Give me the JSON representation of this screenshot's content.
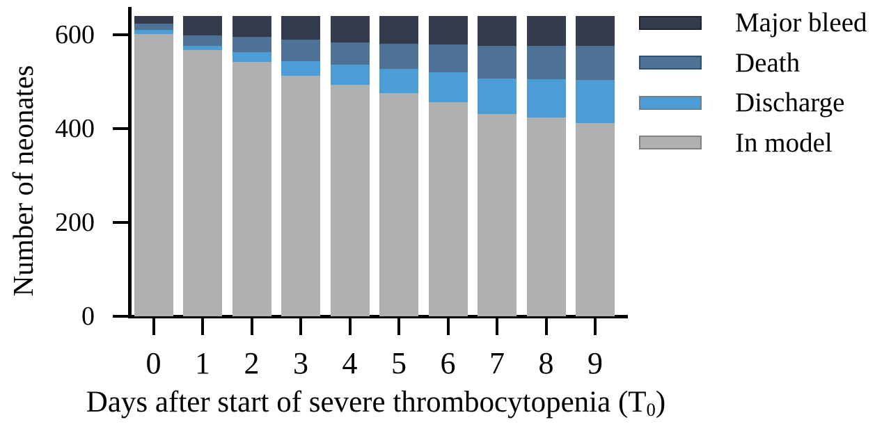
{
  "chart_data": {
    "type": "bar",
    "variant": "stacked",
    "title": "",
    "xlabel": {
      "prefix": "Days after start of severe thrombocytopenia (T",
      "subscript": "0",
      "suffix": ")"
    },
    "ylabel": "Number of neonates",
    "categories": [
      "0",
      "1",
      "2",
      "3",
      "4",
      "5",
      "6",
      "7",
      "8",
      "9"
    ],
    "yticks": [
      0,
      200,
      400,
      600
    ],
    "ylim": [
      0,
      640
    ],
    "grid": false,
    "legend_position": "top-right",
    "series": [
      {
        "name": "In model",
        "color": "#b1b0b0",
        "values": [
          602,
          567,
          542,
          513,
          494,
          476,
          456,
          431,
          423,
          412
        ]
      },
      {
        "name": "Discharge",
        "color": "#4c9cd5",
        "values": [
          9,
          10,
          21,
          31,
          42,
          51,
          64,
          76,
          82,
          92
        ]
      },
      {
        "name": "Death",
        "color": "#4e7295",
        "values": [
          12,
          22,
          33,
          45,
          48,
          54,
          59,
          70,
          72,
          73
        ]
      },
      {
        "name": "Major bleed",
        "color": "#343b4c",
        "values": [
          17,
          41,
          44,
          51,
          56,
          59,
          61,
          63,
          63,
          63
        ]
      }
    ],
    "legend": [
      {
        "label": "Major bleed",
        "color": "#343b4c",
        "border": "#20242f"
      },
      {
        "label": "Death",
        "color": "#4e7295",
        "border": "#32506e"
      },
      {
        "label": "Discharge",
        "color": "#4c9cd5",
        "border": "#6f7f8a"
      },
      {
        "label": "In model",
        "color": "#b1b0b0",
        "border": "#828282"
      }
    ]
  }
}
